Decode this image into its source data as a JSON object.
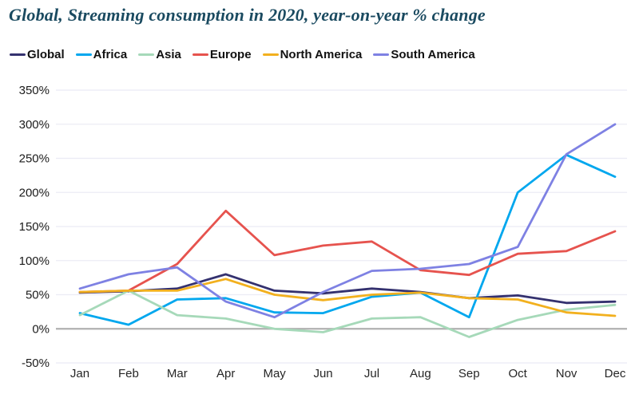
{
  "title": "Global, Streaming consumption in 2020, year-on-year % change",
  "colors": {
    "title_text": "#1a4a60",
    "gridline": "#ebebf5",
    "zero_axis_line": "#b0b0b0",
    "tick_label_text": "#1b1b1b"
  },
  "chart_data": {
    "type": "line",
    "title": "Global, Streaming consumption in 2020, year-on-year % change",
    "xlabel": "",
    "ylabel": "",
    "x": [
      "Jan",
      "Feb",
      "Mar",
      "Apr",
      "May",
      "Jun",
      "Jul",
      "Aug",
      "Sep",
      "Oct",
      "Nov",
      "Dec"
    ],
    "y_ticks": [
      "350%",
      "300%",
      "250%",
      "200%",
      "150%",
      "100%",
      "50%",
      "0%",
      "-50%"
    ],
    "ylim": [
      -50,
      350
    ],
    "ytick_step": 50,
    "ytick_suffix": "%",
    "grid": true,
    "legend_position": "top-left",
    "series": [
      {
        "name": "Global",
        "color": "#34316f",
        "values": [
          53,
          55,
          59,
          80,
          56,
          52,
          59,
          54,
          45,
          49,
          38,
          40
        ]
      },
      {
        "name": "Africa",
        "color": "#00a7ee",
        "values": [
          23,
          6,
          43,
          45,
          24,
          23,
          47,
          53,
          17,
          200,
          255,
          223
        ]
      },
      {
        "name": "Asia",
        "color": "#a6d9b9",
        "values": [
          20,
          56,
          20,
          15,
          0,
          -5,
          15,
          17,
          -12,
          13,
          28,
          35
        ]
      },
      {
        "name": "Europe",
        "color": "#e6534e",
        "values": [
          54,
          56,
          95,
          173,
          108,
          122,
          128,
          86,
          79,
          110,
          114,
          143
        ]
      },
      {
        "name": "North America",
        "color": "#f2b01e",
        "values": [
          54,
          56,
          56,
          73,
          50,
          42,
          50,
          53,
          45,
          43,
          24,
          19
        ]
      },
      {
        "name": "South America",
        "color": "#7e81e3",
        "values": [
          59,
          80,
          90,
          40,
          17,
          54,
          85,
          88,
          95,
          120,
          256,
          300
        ]
      }
    ]
  }
}
